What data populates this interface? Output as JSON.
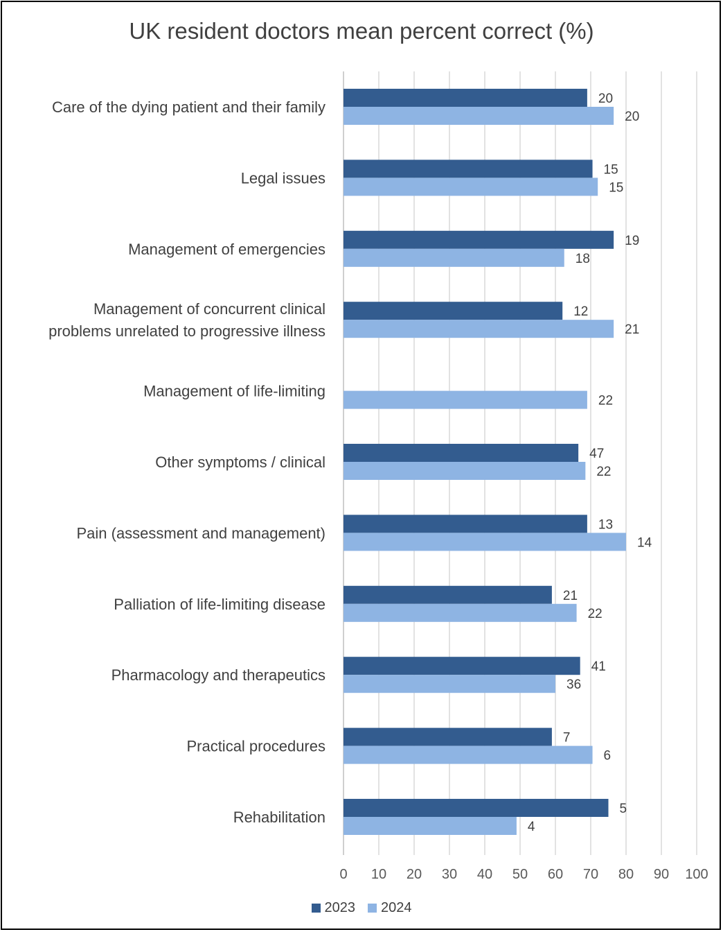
{
  "chart_data": {
    "type": "bar",
    "orientation": "horizontal",
    "title": "UK resident doctors mean percent correct (%)",
    "categories": [
      [
        "Care of the dying patient and their family"
      ],
      [
        "Legal issues"
      ],
      [
        "Management of emergencies"
      ],
      [
        "Management of concurrent clinical",
        "problems unrelated to progressive illness"
      ],
      [
        "Management of life-limiting"
      ],
      [
        "Other symptoms / clinical"
      ],
      [
        "Pain (assessment and management)"
      ],
      [
        "Palliation of life-limiting disease"
      ],
      [
        "Pharmacology and therapeutics"
      ],
      [
        "Practical procedures"
      ],
      [
        "Rehabilitation"
      ]
    ],
    "series": [
      {
        "name": "2023",
        "color": "#335c8f",
        "values": [
          69,
          70.5,
          76.5,
          62,
          null,
          66.5,
          69,
          59,
          67,
          59,
          75
        ],
        "data_labels": [
          "20",
          "15",
          "19",
          "12",
          null,
          "47",
          "13",
          "21",
          "41",
          "7",
          "5"
        ]
      },
      {
        "name": "2024",
        "color": "#8eb4e3",
        "values": [
          76.5,
          72,
          62.5,
          76.5,
          69,
          68.5,
          80,
          66,
          60,
          70.5,
          49
        ],
        "data_labels": [
          "20",
          "15",
          "18",
          "21",
          "22",
          "22",
          "14",
          "22",
          "36",
          "6",
          "4"
        ]
      }
    ],
    "xlim": [
      0,
      100
    ],
    "xticks": [
      "0",
      "10",
      "20",
      "30",
      "40",
      "50",
      "60",
      "70",
      "80",
      "90",
      "100"
    ],
    "grid": true,
    "legend": "bottom"
  }
}
